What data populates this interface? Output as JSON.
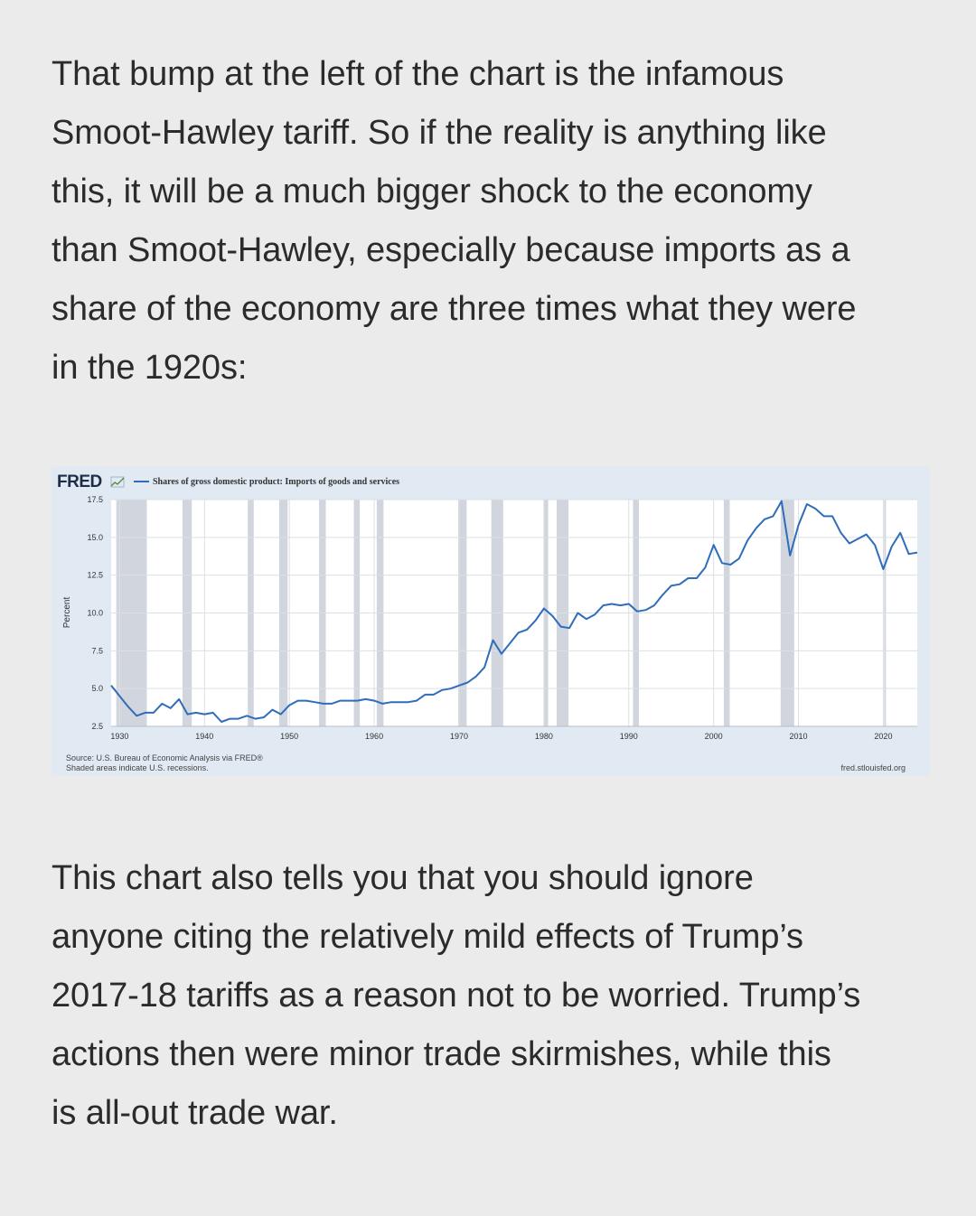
{
  "paragraphs": {
    "intro_lines": [
      "That bump at the left of the chart is the infamous",
      "Smoot-Hawley tariff. So if the reality is anything like",
      "this, it will be a much bigger shock to the economy",
      "than Smoot-Hawley, especially because imports as a",
      "share of the economy are three times what they were",
      "in the 1920s:"
    ],
    "outro_lines": [
      "This chart also tells you that you should ignore",
      "anyone citing the relatively mild effects of Trump’s",
      "2017-18 tariffs as a reason not to be worried. Trump’s",
      "actions then were minor trade skirmishes, while this",
      "is all-out trade war."
    ]
  },
  "chart": {
    "logo": "FRED",
    "source_line1": "Source: U.S. Bureau of Economic Analysis via FRED®",
    "source_line2": "Shaded areas indicate U.S. recessions.",
    "site": "fred.stlouisfed.org"
  },
  "chart_data": {
    "type": "line",
    "title": "",
    "ylabel": "Percent",
    "xlabel": "",
    "ylim": [
      2.5,
      17.5
    ],
    "xlim": [
      1929,
      2024
    ],
    "y_ticks": [
      "2.5",
      "5.0",
      "7.5",
      "10.0",
      "12.5",
      "15.0",
      "17.5"
    ],
    "x_ticks": [
      "1930",
      "1940",
      "1950",
      "1960",
      "1970",
      "1980",
      "1990",
      "2000",
      "2010",
      "2020"
    ],
    "grid": true,
    "legend": "top-left",
    "series": [
      {
        "name": "Shares of gross domestic product: Imports of goods and services",
        "color": "#2f6dba",
        "x": [
          1929,
          1930,
          1931,
          1932,
          1933,
          1934,
          1935,
          1936,
          1937,
          1938,
          1939,
          1940,
          1941,
          1942,
          1943,
          1944,
          1945,
          1946,
          1947,
          1948,
          1949,
          1950,
          1951,
          1952,
          1953,
          1954,
          1955,
          1956,
          1957,
          1958,
          1959,
          1960,
          1961,
          1962,
          1963,
          1964,
          1965,
          1966,
          1967,
          1968,
          1969,
          1970,
          1971,
          1972,
          1973,
          1974,
          1975,
          1976,
          1977,
          1978,
          1979,
          1980,
          1981,
          1982,
          1983,
          1984,
          1985,
          1986,
          1987,
          1988,
          1989,
          1990,
          1991,
          1992,
          1993,
          1994,
          1995,
          1996,
          1997,
          1998,
          1999,
          2000,
          2001,
          2002,
          2003,
          2004,
          2005,
          2006,
          2007,
          2008,
          2009,
          2010,
          2011,
          2012,
          2013,
          2014,
          2015,
          2016,
          2017,
          2018,
          2019,
          2020,
          2021,
          2022,
          2023,
          2024
        ],
        "y": [
          5.2,
          4.5,
          3.8,
          3.2,
          3.4,
          3.4,
          4.0,
          3.7,
          4.3,
          3.3,
          3.4,
          3.3,
          3.4,
          2.8,
          3.0,
          3.0,
          3.2,
          3.0,
          3.1,
          3.6,
          3.3,
          3.9,
          4.2,
          4.2,
          4.1,
          4.0,
          4.0,
          4.2,
          4.2,
          4.2,
          4.3,
          4.2,
          4.0,
          4.1,
          4.1,
          4.1,
          4.2,
          4.6,
          4.6,
          4.9,
          5.0,
          5.2,
          5.4,
          5.8,
          6.4,
          8.2,
          7.3,
          8.0,
          8.7,
          8.9,
          9.5,
          10.3,
          9.8,
          9.1,
          9.0,
          10.0,
          9.6,
          9.9,
          10.5,
          10.6,
          10.5,
          10.6,
          10.1,
          10.2,
          10.5,
          11.2,
          11.8,
          11.9,
          12.3,
          12.3,
          13.0,
          14.5,
          13.3,
          13.2,
          13.6,
          14.8,
          15.6,
          16.2,
          16.4,
          17.4,
          13.8,
          15.8,
          17.2,
          16.9,
          16.4,
          16.4,
          15.3,
          14.6,
          14.9,
          15.2,
          14.5,
          12.9,
          14.4,
          15.3,
          13.9,
          14.0
        ]
      }
    ],
    "recessions": [
      [
        1929.6,
        1933.2
      ],
      [
        1937.4,
        1938.5
      ],
      [
        1945.1,
        1945.8
      ],
      [
        1948.8,
        1949.8
      ],
      [
        1953.5,
        1954.3
      ],
      [
        1957.6,
        1958.3
      ],
      [
        1960.3,
        1961.1
      ],
      [
        1969.9,
        1970.9
      ],
      [
        1973.8,
        1975.2
      ],
      [
        1980.0,
        1980.5
      ],
      [
        1981.5,
        1982.9
      ],
      [
        1990.5,
        1991.2
      ],
      [
        2001.2,
        2001.9
      ],
      [
        2007.9,
        2009.5
      ],
      [
        2020.1,
        2020.3
      ]
    ]
  }
}
